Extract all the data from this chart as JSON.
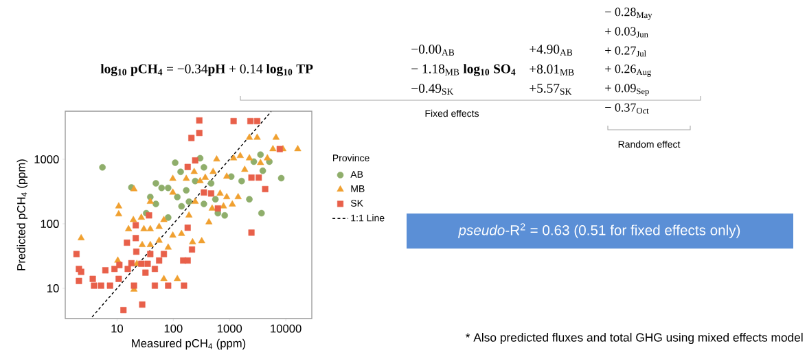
{
  "chart_data": {
    "type": "scatter",
    "xlabel": "Measured pCH$_{4}$ (ppm)",
    "ylabel": "Predicted pCH$_{4}$ (ppm)",
    "legend_title": "Province",
    "log": "xy",
    "xlim": [
      1.2,
      29000
    ],
    "ylim": [
      3.4,
      5560
    ],
    "xticks": [
      10,
      100,
      1000,
      10000
    ],
    "yticks": [
      10,
      100,
      1000
    ],
    "legend": "right",
    "series": [
      {
        "name": "AB",
        "color": "#8fae6b",
        "marker": "circle",
        "x": [
          5.5,
          18,
          39,
          49,
          33,
          62,
          81,
          108,
          135,
          118,
          81,
          140,
          170,
          300,
          350,
          350,
          470,
          560,
          620,
          820,
          1070,
          1640,
          2250,
          2700,
          3550,
          3700,
          3900,
          5100,
          8300,
          49,
          245,
          190
        ],
        "values": [
          750,
          366,
          260,
          424,
          146,
          360,
          360,
          885,
          640,
          260,
          125,
          187,
          330,
          1040,
          750,
          203,
          424,
          240,
          146,
          135,
          540,
          460,
          240,
          920,
          1180,
          146,
          665,
          920,
          510,
          203,
          460,
          220
        ]
      },
      {
        "name": "MB",
        "color": "#f0a030",
        "marker": "triangle",
        "x": [
          2.3,
          10.7,
          10.7,
          10.3,
          20,
          20,
          16,
          19.5,
          27,
          30,
          39,
          28,
          39,
          56,
          39,
          56,
          68,
          68,
          118,
          81,
          98,
          98,
          98,
          140,
          170,
          190,
          235,
          245,
          220,
          320,
          370,
          430,
          490,
          590,
          680,
          780,
          890,
          890,
          1120,
          1420,
          1180,
          1550,
          1860,
          2250,
          2250,
          3100,
          3550,
          4700,
          5900,
          6700,
          8900,
          16300,
          300,
          510,
          22.5
        ],
        "values": [
          60,
          187,
          141,
          27,
          345,
          9.6,
          83,
          115,
          125,
          83,
          83,
          47,
          47,
          55,
          220,
          90,
          115,
          14,
          14,
          43,
          66,
          306,
          500,
          70,
          500,
          135,
          640,
          220,
          52,
          54,
          520,
          106,
          173,
          1000,
          295,
          187,
          540,
          260,
          200,
          260,
          1040,
          1130,
          690,
          2170,
          1040,
          2170,
          880,
          1040,
          1440,
          2170,
          1440,
          1440,
          460,
          640,
          24
        ]
      },
      {
        "name": "SK",
        "color": "#e8604a",
        "marker": "square",
        "x": [
          1.9,
          2.1,
          2.1,
          2.3,
          3.7,
          3.9,
          5.2,
          6.2,
          7.5,
          9,
          10.7,
          13,
          15,
          18,
          21.5,
          21.5,
          22,
          20,
          28,
          35,
          39,
          47,
          47,
          68,
          81,
          56,
          37,
          155,
          150,
          180,
          180,
          180,
          215,
          210,
          245,
          290,
          290,
          350,
          470,
          620,
          1180,
          2350,
          3100,
          2450,
          3300,
          4300,
          2450,
          7800,
          11,
          15.5,
          27,
          32
        ],
        "values": [
          34,
          20,
          13,
          18,
          14,
          11,
          11,
          19,
          11,
          20,
          14,
          4.6,
          51,
          24.5,
          95,
          60,
          37,
          11,
          5.6,
          24,
          34,
          20,
          11,
          34,
          11,
          27,
          135,
          11,
          27,
          27,
          87,
          760,
          40,
          2140,
          960,
          4000,
          2560,
          306,
          295,
          173,
          3900,
          3900,
          3900,
          520,
          520,
          345,
          73,
          1440,
          23,
          20,
          24,
          17.5
        ]
      },
      {
        "name": "1:1 Line",
        "type": "line",
        "color": "#000000",
        "line_style": "dashed",
        "marker": "none",
        "x": [
          3.6,
          5500
        ],
        "values": [
          3.6,
          5500
        ]
      }
    ],
    "annotations": [
      "**log$_{10}$ pCH$_{4}$** = −0.34**pH** + 0.14 **log$_{10}$ TP**",
      "−0.00$_{AB}$",
      "− 1.18$_{MB}$ **log$_{10}$ SO$_{4}$**",
      "−0.49$_{SK}$",
      "+4.90$_{AB}$",
      "+8.01$_{MB}$",
      "+5.57$_{SK}$",
      "− 0.28$_{May}$",
      "+ 0.03$_{Jun}$",
      "+ 0.27$_{Jul}$",
      "+ 0.26$_{Aug}$",
      "+ 0.09$_{Sep}$",
      "− 0.37$_{Oct}$",
      "Fixed effects",
      "Random effect",
      "*pseudo*-R$^{2}$ = 0.63 (0.51 for fixed effects only)",
      "* Also predicted fluxes and total GHG using mixed effects model"
    ]
  }
}
